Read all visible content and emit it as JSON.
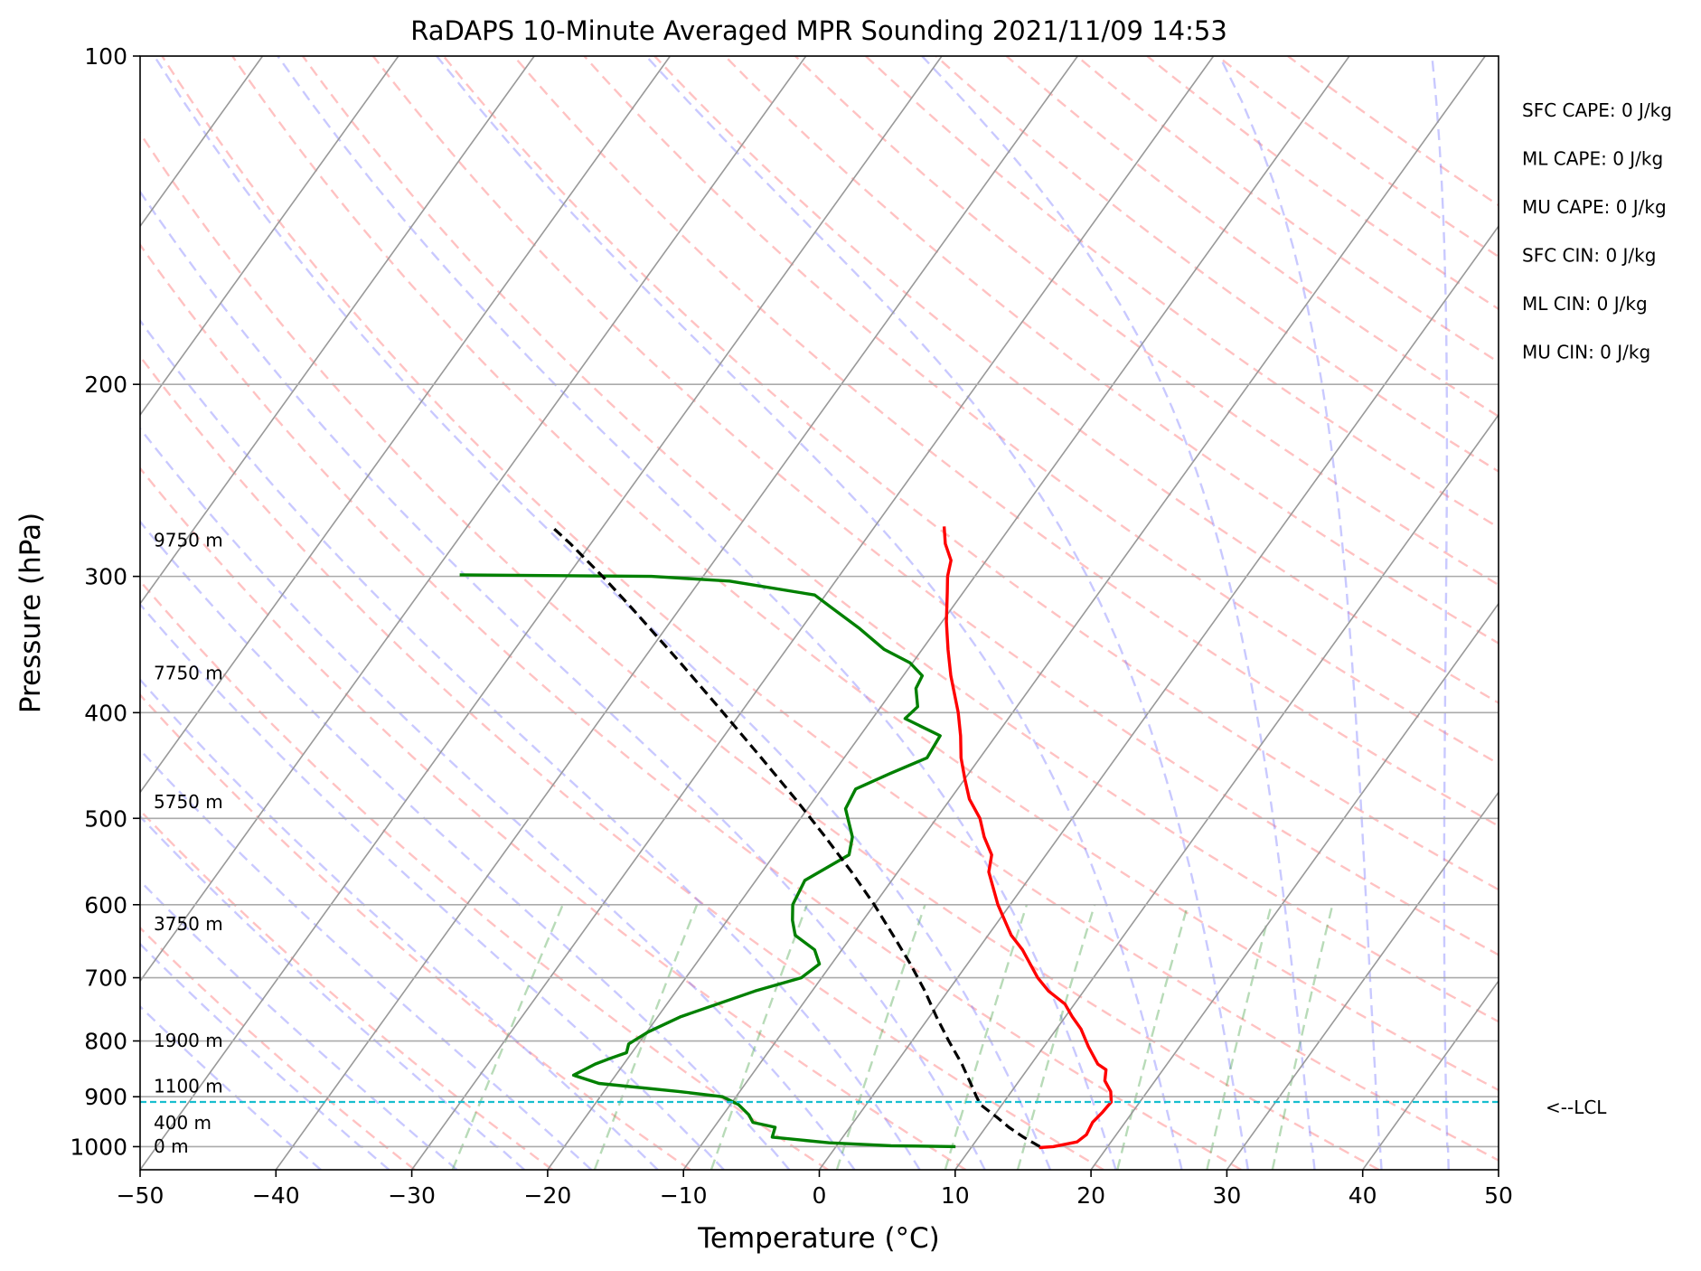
{
  "chart_data": {
    "type": "line",
    "title": "RaDAPS 10-Minute Averaged MPR Sounding 2021/11/09 14:53",
    "xlabel": "Temperature (°C)",
    "ylabel": "Pressure (hPa)",
    "xlim": [
      -50,
      50
    ],
    "ylim": [
      1050,
      100
    ],
    "y_scale": "log",
    "grid": true,
    "x_ticks": [
      -50,
      -40,
      -30,
      -20,
      -10,
      0,
      10,
      20,
      30,
      40,
      50
    ],
    "x_tick_labels": [
      "−50",
      "−40",
      "−30",
      "−20",
      "−10",
      "0",
      "10",
      "20",
      "30",
      "40",
      "50"
    ],
    "y_ticks": [
      100,
      200,
      300,
      400,
      500,
      600,
      700,
      800,
      900,
      1000
    ],
    "y_tick_labels": [
      "100",
      "200",
      "300",
      "400",
      "500",
      "600",
      "700",
      "800",
      "900",
      "1000"
    ],
    "series": [
      {
        "color": "#ff0000",
        "points": [
          [
            1002,
            15.0
          ],
          [
            1000,
            16.0
          ],
          [
            990,
            17.5
          ],
          [
            975,
            17.8
          ],
          [
            950,
            17.6
          ],
          [
            930,
            17.8
          ],
          [
            910,
            17.9
          ],
          [
            890,
            17.3
          ],
          [
            870,
            16.3
          ],
          [
            850,
            15.8
          ],
          [
            840,
            14.9
          ],
          [
            810,
            13.3
          ],
          [
            780,
            11.8
          ],
          [
            760,
            10.5
          ],
          [
            740,
            9.3
          ],
          [
            720,
            7.4
          ],
          [
            700,
            5.9
          ],
          [
            660,
            3.3
          ],
          [
            640,
            1.7
          ],
          [
            600,
            -0.9
          ],
          [
            560,
            -3.3
          ],
          [
            540,
            -4.0
          ],
          [
            520,
            -5.5
          ],
          [
            500,
            -6.8
          ],
          [
            480,
            -8.6
          ],
          [
            460,
            -10.0
          ],
          [
            440,
            -11.4
          ],
          [
            420,
            -12.6
          ],
          [
            400,
            -14.0
          ],
          [
            370,
            -16.5
          ],
          [
            350,
            -18.1
          ],
          [
            330,
            -19.7
          ],
          [
            310,
            -21.2
          ],
          [
            300,
            -22.0
          ],
          [
            290,
            -22.6
          ],
          [
            280,
            -23.9
          ],
          [
            270,
            -24.9
          ]
        ]
      },
      {
        "color": "#008000",
        "points": [
          [
            1000,
            8.8
          ],
          [
            998,
            4.0
          ],
          [
            992,
            -0.7
          ],
          [
            980,
            -5.2
          ],
          [
            960,
            -5.5
          ],
          [
            950,
            -7.4
          ],
          [
            935,
            -8.1
          ],
          [
            915,
            -9.4
          ],
          [
            900,
            -11.0
          ],
          [
            890,
            -14.5
          ],
          [
            875,
            -20.8
          ],
          [
            860,
            -23.1
          ],
          [
            840,
            -22.1
          ],
          [
            830,
            -21.3
          ],
          [
            820,
            -20.4
          ],
          [
            805,
            -20.7
          ],
          [
            785,
            -19.9
          ],
          [
            760,
            -18.3
          ],
          [
            720,
            -14.2
          ],
          [
            700,
            -11.5
          ],
          [
            680,
            -10.9
          ],
          [
            660,
            -12.0
          ],
          [
            640,
            -14.2
          ],
          [
            620,
            -15.2
          ],
          [
            600,
            -16.0
          ],
          [
            570,
            -16.4
          ],
          [
            540,
            -14.5
          ],
          [
            520,
            -15.2
          ],
          [
            490,
            -17.2
          ],
          [
            470,
            -17.5
          ],
          [
            455,
            -15.8
          ],
          [
            440,
            -13.9
          ],
          [
            420,
            -14.1
          ],
          [
            405,
            -17.6
          ],
          [
            395,
            -17.3
          ],
          [
            380,
            -18.4
          ],
          [
            370,
            -18.6
          ],
          [
            360,
            -20.2
          ],
          [
            350,
            -22.8
          ],
          [
            335,
            -25.7
          ],
          [
            320,
            -29.0
          ],
          [
            312,
            -30.8
          ],
          [
            303,
            -37.8
          ],
          [
            300,
            -43.8
          ],
          [
            299,
            -58.0
          ]
        ]
      },
      {
        "color": "#000000",
        "dashed": true,
        "points": [
          [
            1000,
            15.0
          ],
          [
            980,
            13.3
          ],
          [
            960,
            11.7
          ],
          [
            940,
            10.3
          ],
          [
            915,
            8.4
          ],
          [
            900,
            7.7
          ],
          [
            880,
            6.8
          ],
          [
            840,
            4.9
          ],
          [
            800,
            2.7
          ],
          [
            760,
            0.5
          ],
          [
            720,
            -1.7
          ],
          [
            680,
            -4.2
          ],
          [
            640,
            -7.0
          ],
          [
            600,
            -10.0
          ],
          [
            560,
            -13.4
          ],
          [
            520,
            -17.2
          ],
          [
            480,
            -21.4
          ],
          [
            440,
            -26.1
          ],
          [
            400,
            -31.3
          ],
          [
            360,
            -37.1
          ],
          [
            320,
            -43.7
          ],
          [
            300,
            -47.4
          ],
          [
            280,
            -51.5
          ],
          [
            270,
            -53.8
          ]
        ]
      }
    ],
    "height_labels": [
      {
        "text": "9750 m",
        "p": 278
      },
      {
        "text": "7750 m",
        "p": 368
      },
      {
        "text": "5750 m",
        "p": 483
      },
      {
        "text": "3750 m",
        "p": 625
      },
      {
        "text": "1900 m",
        "p": 799
      },
      {
        "text": "1100 m",
        "p": 880
      },
      {
        "text": "400 m",
        "p": 951
      },
      {
        "text": "0 m",
        "p": 999
      }
    ],
    "lcl": {
      "label": "<--LCL",
      "p": 910
    },
    "annotations": [
      "SFC CAPE: 0 J/kg",
      "ML CAPE: 0 J/kg",
      "MU CAPE: 0 J/kg",
      "SFC CIN: 0 J/kg",
      "ML CIN: 0 J/kg",
      "MU CIN: 0 J/kg"
    ]
  }
}
